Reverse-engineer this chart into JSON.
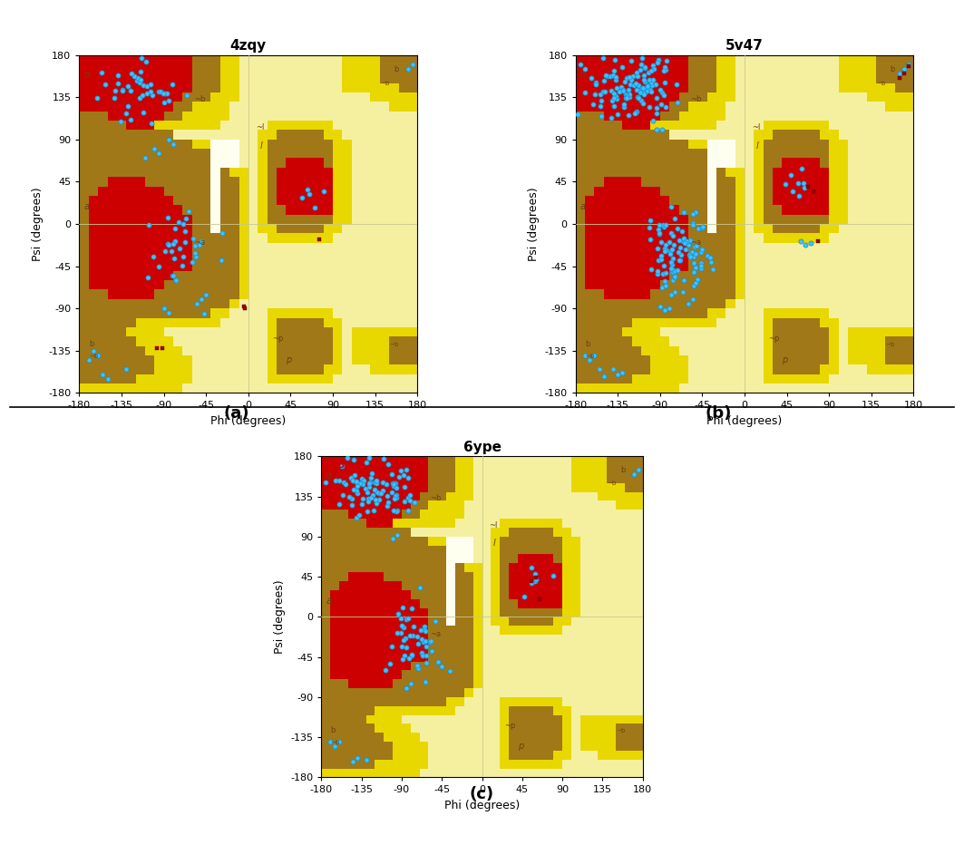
{
  "titles": [
    "4zqy",
    "5v47",
    "6ype"
  ],
  "subplot_labels": [
    "(a)",
    "(b)",
    "(c)"
  ],
  "colors": {
    "bg": "#F5F0A0",
    "yellow": "#E8D800",
    "brown": "#A07818",
    "red": "#CC0000",
    "cream": "#FFFFF0"
  },
  "axis_ticks": [
    -180,
    -135,
    -90,
    -45,
    0,
    45,
    90,
    135,
    180
  ],
  "xlabel": "Phi (degrees)",
  "ylabel": "Psi (degrees)",
  "title_fontsize": 11,
  "label_fontsize": 9,
  "tick_fontsize": 8,
  "point_color": "#40C0FF",
  "point_edge_color": "#1090CC",
  "point_size": 14,
  "point_marker": "o"
}
